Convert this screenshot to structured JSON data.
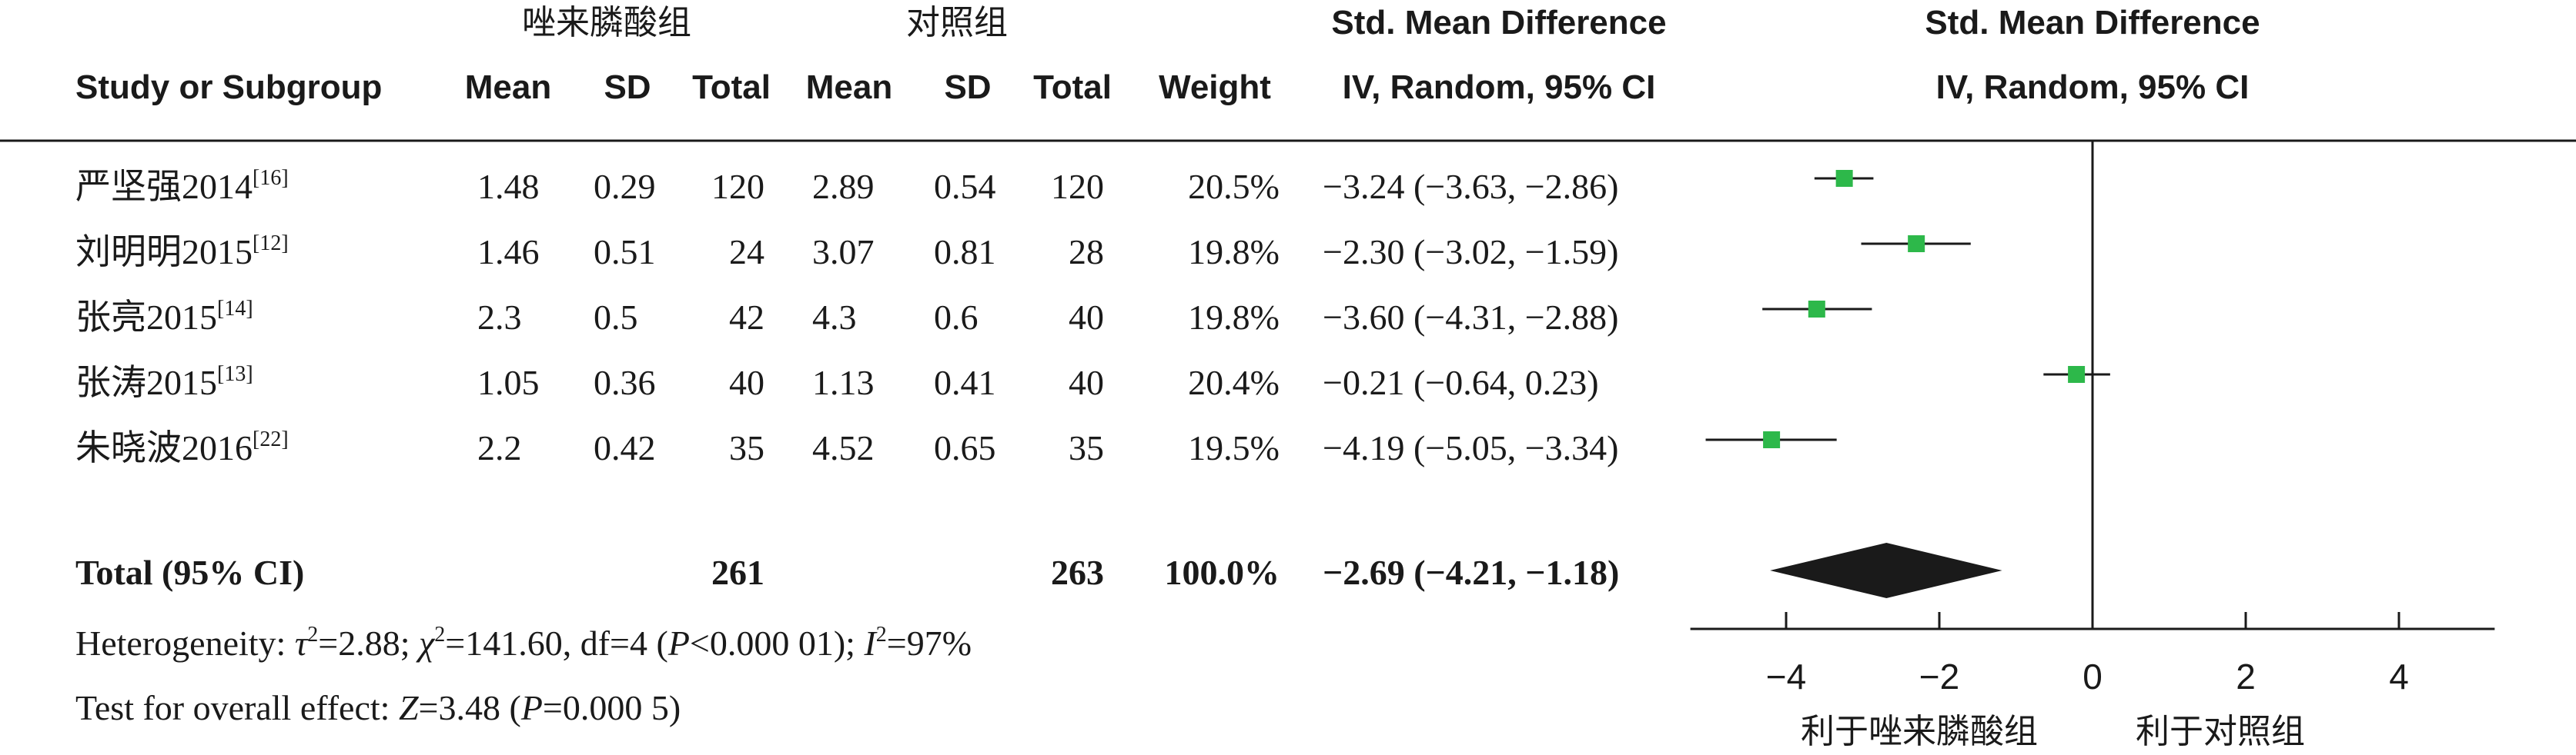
{
  "chart_data": {
    "type": "forest",
    "headers": {
      "group_exp": "唑来膦酸组",
      "group_ctrl": "对照组",
      "smd_title": "Std. Mean Difference",
      "smd_method": "IV, Random, 95% CI",
      "plot_title": "Std. Mean Difference",
      "plot_method": "IV, Random, 95% CI",
      "study": "Study or Subgroup",
      "mean_exp": "Mean",
      "sd_exp": "SD",
      "total_exp": "Total",
      "mean_ctrl": "Mean",
      "sd_ctrl": "SD",
      "total_ctrl": "Total",
      "weight": "Weight"
    },
    "studies": [
      {
        "name": "严坚强2014",
        "ref": "[16]",
        "mean_exp": "1.48",
        "sd_exp": "0.29",
        "total_exp": "120",
        "mean_ctrl": "2.89",
        "sd_ctrl": "0.54",
        "total_ctrl": "120",
        "weight": "20.5%",
        "ci_text": "−3.24 (−3.63, −2.86)",
        "est": -3.24,
        "lo": -3.63,
        "hi": -2.86
      },
      {
        "name": "刘明明2015",
        "ref": "[12]",
        "mean_exp": "1.46",
        "sd_exp": "0.51",
        "total_exp": "24",
        "mean_ctrl": "3.07",
        "sd_ctrl": "0.81",
        "total_ctrl": "28",
        "weight": "19.8%",
        "ci_text": "−2.30 (−3.02, −1.59)",
        "est": -2.3,
        "lo": -3.02,
        "hi": -1.59
      },
      {
        "name": "张亮2015",
        "ref": "[14]",
        "mean_exp": "2.3",
        "sd_exp": "0.5",
        "total_exp": "42",
        "mean_ctrl": "4.3",
        "sd_ctrl": "0.6",
        "total_ctrl": "40",
        "weight": "19.8%",
        "ci_text": "−3.60 (−4.31, −2.88)",
        "est": -3.6,
        "lo": -4.31,
        "hi": -2.88
      },
      {
        "name": "张涛2015",
        "ref": "[13]",
        "mean_exp": "1.05",
        "sd_exp": "0.36",
        "total_exp": "40",
        "mean_ctrl": "1.13",
        "sd_ctrl": "0.41",
        "total_ctrl": "40",
        "weight": "20.4%",
        "ci_text": "−0.21 (−0.64, 0.23)",
        "est": -0.21,
        "lo": -0.64,
        "hi": 0.23
      },
      {
        "name": "朱晓波2016",
        "ref": "[22]",
        "mean_exp": "2.2",
        "sd_exp": "0.42",
        "total_exp": "35",
        "mean_ctrl": "4.52",
        "sd_ctrl": "0.65",
        "total_ctrl": "35",
        "weight": "19.5%",
        "ci_text": "−4.19 (−5.05, −3.34)",
        "est": -4.19,
        "lo": -5.05,
        "hi": -3.34
      }
    ],
    "total": {
      "label": "Total (95% CI)",
      "total_exp": "261",
      "total_ctrl": "263",
      "weight": "100.0%",
      "ci_text": "−2.69 (−4.21, −1.18)",
      "est": -2.69,
      "lo": -4.21,
      "hi": -1.18
    },
    "heterogeneity": {
      "prefix": "Heterogeneity: ",
      "tau_sym": "τ",
      "tau_val": "=2.88; ",
      "chi_sym": "χ",
      "chi_val": "=141.60, df=4 (",
      "p_sym": "P",
      "p_val": "<0.000 01); ",
      "i_sym": "I",
      "i_val": "=97%",
      "sup": "2"
    },
    "overall": {
      "prefix": "Test for overall effect: ",
      "z_sym": "Z",
      "z_val": "=3.48 (",
      "p_sym": "P",
      "p_val": "=0.000 5)"
    },
    "axis": {
      "xlim": [
        -5.25,
        5.25
      ],
      "ticks": [
        -4,
        -2,
        0,
        2,
        4
      ],
      "tick_labels": [
        "−4",
        "−2",
        "0",
        "2",
        "4"
      ]
    },
    "favours_left": "利于唑来膦酸组",
    "favours_right": "利于对照组",
    "colors": {
      "marker": "#2db84a",
      "diamond": "#1a1a1a",
      "line": "#1a1a1a"
    }
  }
}
